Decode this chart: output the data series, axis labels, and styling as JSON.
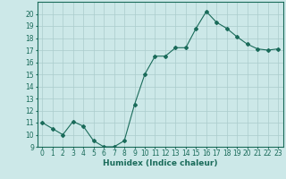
{
  "x": [
    0,
    1,
    2,
    3,
    4,
    5,
    6,
    7,
    8,
    9,
    10,
    11,
    12,
    13,
    14,
    15,
    16,
    17,
    18,
    19,
    20,
    21,
    22,
    23
  ],
  "y": [
    11,
    10.5,
    10,
    11.1,
    10.7,
    9.5,
    9,
    9,
    9.5,
    12.5,
    15,
    16.5,
    16.5,
    17.2,
    17.2,
    18.8,
    20.2,
    19.3,
    18.8,
    18.1,
    17.5,
    17.1,
    17.0,
    17.1
  ],
  "line_color": "#1a6b5a",
  "marker": "D",
  "marker_size": 2,
  "background_color": "#cce8e8",
  "grid_color": "#aacccc",
  "xlabel": "Humidex (Indice chaleur)",
  "xlim": [
    -0.5,
    23.5
  ],
  "ylim": [
    9,
    21
  ],
  "yticks": [
    9,
    10,
    11,
    12,
    13,
    14,
    15,
    16,
    17,
    18,
    19,
    20
  ],
  "xticks": [
    0,
    1,
    2,
    3,
    4,
    5,
    6,
    7,
    8,
    9,
    10,
    11,
    12,
    13,
    14,
    15,
    16,
    17,
    18,
    19,
    20,
    21,
    22,
    23
  ],
  "xlabel_fontsize": 6.5,
  "tick_fontsize": 5.5
}
